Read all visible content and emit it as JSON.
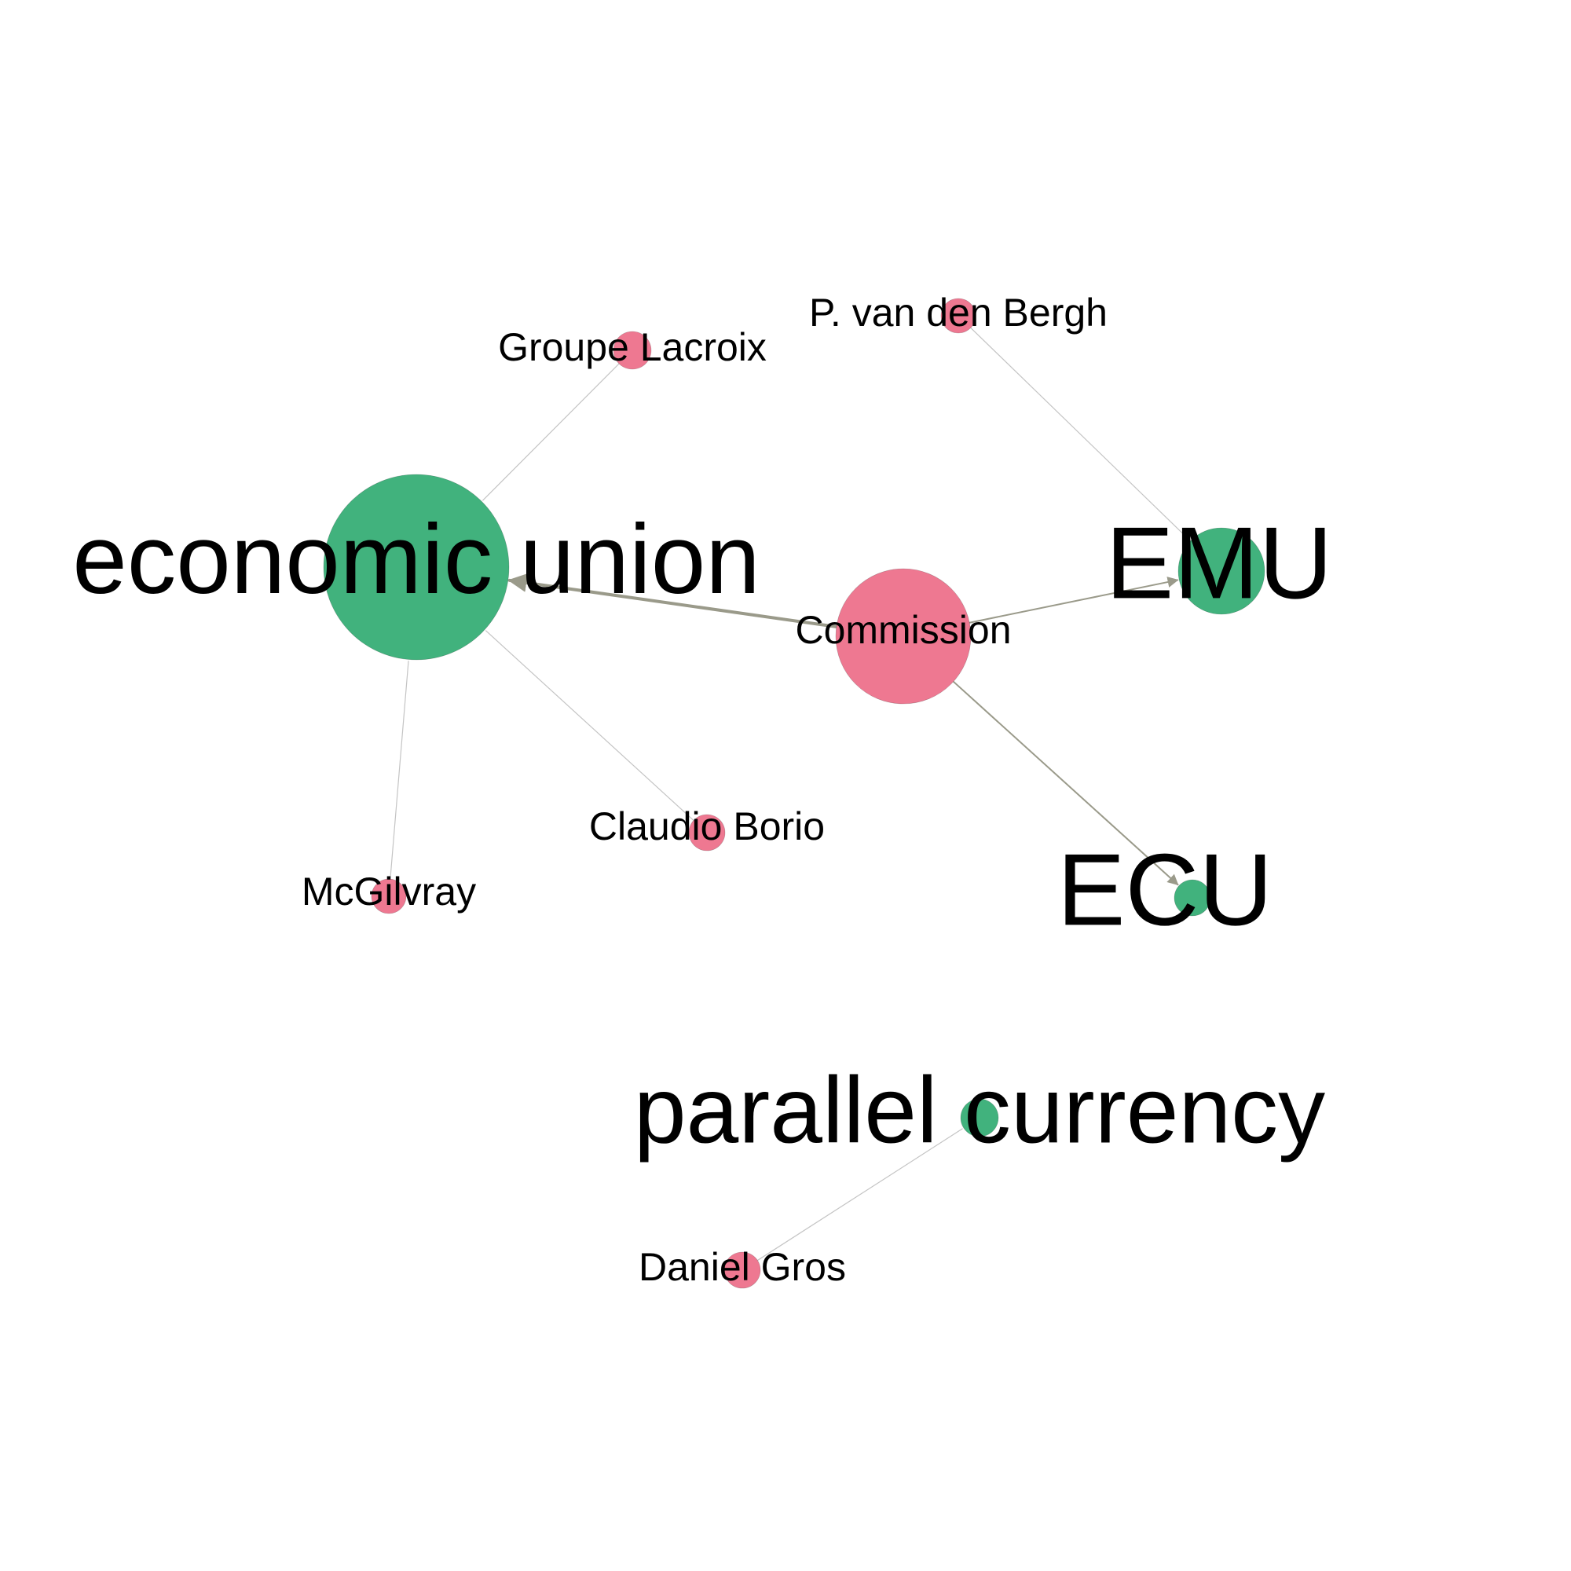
{
  "colors": {
    "concept": "#41b27d",
    "actor": "#ee7891",
    "edge_strong": "#9a9a8a",
    "edge_weak": "#c4c4c4",
    "background": "#ffffff"
  },
  "nodes": [
    {
      "id": "economic_union",
      "label": "economic union",
      "kind": "concept"
    },
    {
      "id": "commission",
      "label": "Commission",
      "kind": "actor"
    },
    {
      "id": "emu",
      "label": "EMU",
      "kind": "concept"
    },
    {
      "id": "ecu",
      "label": "ECU",
      "kind": "concept"
    },
    {
      "id": "parallel_currency",
      "label": "parallel currency",
      "kind": "concept"
    },
    {
      "id": "groupe_lacroix",
      "label": "Groupe Lacroix",
      "kind": "actor"
    },
    {
      "id": "p_van_den_bergh",
      "label": "P. van den Bergh",
      "kind": "actor"
    },
    {
      "id": "claudio_borio",
      "label": "Claudio Borio",
      "kind": "actor"
    },
    {
      "id": "mcgilvray",
      "label": "McGilvray",
      "kind": "actor"
    },
    {
      "id": "daniel_gros",
      "label": "Daniel Gros",
      "kind": "actor"
    }
  ],
  "edges": [
    {
      "source": "commission",
      "target": "economic_union",
      "directed": true,
      "weight": "strong"
    },
    {
      "source": "commission",
      "target": "emu",
      "directed": true,
      "weight": "medium"
    },
    {
      "source": "commission",
      "target": "ecu",
      "directed": true,
      "weight": "medium"
    },
    {
      "source": "groupe_lacroix",
      "target": "economic_union",
      "directed": false,
      "weight": "weak"
    },
    {
      "source": "p_van_den_bergh",
      "target": "emu",
      "directed": false,
      "weight": "weak"
    },
    {
      "source": "claudio_borio",
      "target": "economic_union",
      "directed": false,
      "weight": "weak"
    },
    {
      "source": "mcgilvray",
      "target": "economic_union",
      "directed": false,
      "weight": "weak"
    },
    {
      "source": "daniel_gros",
      "target": "parallel_currency",
      "directed": false,
      "weight": "weak"
    }
  ]
}
